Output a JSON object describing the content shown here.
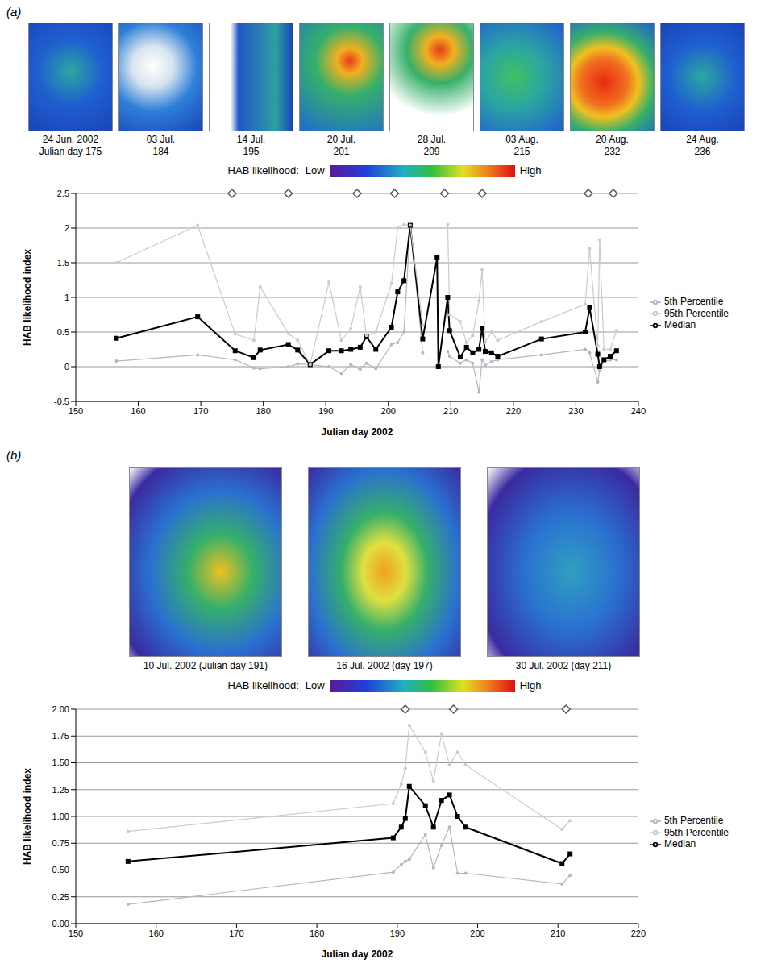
{
  "panels": [
    {
      "label": "(a)",
      "maps": [
        {
          "date": "24 Jun. 2002",
          "day": "Julian day 175"
        },
        {
          "date": "03 Jul.",
          "day": "184"
        },
        {
          "date": "14 Jul.",
          "day": "195"
        },
        {
          "date": "20 Jul.",
          "day": "201"
        },
        {
          "date": "28 Jul.",
          "day": "209"
        },
        {
          "date": "03 Aug.",
          "day": "215"
        },
        {
          "date": "20 Aug.",
          "day": "232"
        },
        {
          "date": "24 Aug.",
          "day": "236"
        }
      ],
      "colorbar": {
        "label": "HAB likelihood:",
        "low": "Low",
        "high": "High"
      }
    },
    {
      "label": "(b)",
      "maps": [
        {
          "date": "10 Jul. 2002 (Julian day 191)"
        },
        {
          "date": "16 Jul. 2002 (day 197)"
        },
        {
          "date": "30 Jul. 2002 (day 211)"
        }
      ],
      "colorbar": {
        "label": "HAB likelihood:",
        "low": "Low",
        "high": "High"
      }
    }
  ],
  "chart_data": [
    {
      "type": "line",
      "x_label": "Julian day 2002",
      "y_label": "HAB likelihood index",
      "xlim": [
        150,
        240
      ],
      "xticks": [
        150,
        160,
        170,
        180,
        190,
        200,
        210,
        220,
        230,
        240
      ],
      "ylim": [
        -0.5,
        2.5
      ],
      "yticks": [
        -0.5,
        0,
        0.5,
        1,
        1.5,
        2,
        2.5
      ],
      "grid": true,
      "legend": "right",
      "x": [
        156.5,
        169.5,
        175.5,
        178.5,
        179.5,
        184,
        185.5,
        187.5,
        190.5,
        192.5,
        194,
        195.5,
        196.5,
        198,
        200.5,
        201.5,
        202.5,
        203.5,
        205.5,
        207.8,
        208,
        209.5,
        209.8,
        211.5,
        212.5,
        213.5,
        214.5,
        215,
        215.5,
        216.5,
        217.5,
        224.5,
        231.5,
        232.2,
        233.5,
        233.8,
        234.5,
        235.5,
        236.5
      ],
      "series": [
        {
          "name": "5th Percentile",
          "color": "#b0b8c4",
          "marker": "circle",
          "values": [
            0.08,
            0.17,
            0.1,
            -0.02,
            -0.03,
            0.0,
            0.04,
            0.03,
            0.0,
            -0.1,
            0.03,
            -0.04,
            0.05,
            -0.03,
            0.32,
            0.35,
            0.5,
            2.04,
            0.2,
            null,
            null,
            0.22,
            0.15,
            0.05,
            0.1,
            0.05,
            -0.37,
            0.1,
            0.02,
            0.07,
            0.1,
            0.17,
            0.25,
            0.2,
            -0.22,
            -0.05,
            0.07,
            0.1,
            0.1
          ]
        },
        {
          "name": "Median",
          "color": "#000000",
          "marker": "square",
          "values": [
            0.41,
            0.72,
            0.23,
            0.13,
            0.24,
            0.32,
            0.24,
            0.03,
            0.23,
            0.23,
            0.25,
            0.28,
            0.43,
            0.25,
            0.57,
            1.08,
            1.24,
            2.04,
            0.4,
            1.57,
            0.0,
            1.0,
            0.52,
            0.14,
            0.28,
            0.2,
            0.25,
            0.55,
            0.22,
            0.2,
            0.15,
            0.4,
            0.5,
            0.85,
            0.18,
            0.0,
            0.1,
            0.15,
            0.23
          ]
        },
        {
          "name": "95th Percentile",
          "color": "#c4ccd6",
          "marker": "circle",
          "values": [
            1.5,
            2.04,
            0.47,
            0.38,
            1.15,
            0.48,
            0.38,
            0.03,
            1.22,
            0.38,
            0.55,
            1.15,
            0.45,
            0.5,
            1.2,
            2.0,
            2.05,
            2.04,
            0.6,
            null,
            null,
            2.05,
            0.75,
            0.65,
            0.35,
            0.45,
            0.95,
            1.4,
            0.35,
            0.5,
            0.38,
            0.65,
            0.9,
            1.7,
            0.3,
            1.83,
            0.25,
            0.25,
            0.52
          ]
        }
      ],
      "image_days": {
        "x": [
          175,
          184,
          195,
          201,
          209,
          215,
          232,
          236
        ],
        "y": 2.5
      }
    },
    {
      "type": "line",
      "x_label": "Julian day 2002",
      "y_label": "HAB likelihood index",
      "xlim": [
        150,
        220
      ],
      "xticks": [
        150,
        160,
        170,
        180,
        190,
        200,
        210,
        220
      ],
      "ylim": [
        0,
        2
      ],
      "yticks": [
        {
          "value": 0,
          "label": "0.00"
        },
        {
          "value": 0.25,
          "label": "0.25"
        },
        {
          "value": 0.5,
          "label": "0.50"
        },
        {
          "value": 0.75,
          "label": "0.75"
        },
        {
          "value": 1,
          "label": "1.00"
        },
        {
          "value": 1.25,
          "label": "1.25"
        },
        {
          "value": 1.5,
          "label": "1.50"
        },
        {
          "value": 1.75,
          "label": "1.75"
        },
        {
          "value": 2,
          "label": "2.00"
        }
      ],
      "grid": true,
      "legend": "right",
      "x": [
        156.5,
        189.5,
        190.5,
        191,
        191.5,
        193.5,
        194.5,
        195.5,
        196.5,
        197.5,
        198.5,
        210.5,
        211.5
      ],
      "series": [
        {
          "name": "5th Percentile",
          "color": "#b0b8c4",
          "marker": "circle",
          "values": [
            0.18,
            0.48,
            0.55,
            0.58,
            0.6,
            0.83,
            0.52,
            0.73,
            0.9,
            0.47,
            0.47,
            0.37,
            0.45
          ]
        },
        {
          "name": "Median",
          "color": "#000000",
          "marker": "square",
          "values": [
            0.58,
            0.8,
            0.9,
            0.98,
            1.28,
            1.1,
            0.9,
            1.15,
            1.2,
            1.0,
            0.9,
            0.56,
            0.65
          ]
        },
        {
          "name": "95th Percentile",
          "color": "#c4ccd6",
          "marker": "circle",
          "values": [
            0.86,
            1.12,
            1.3,
            1.45,
            1.85,
            1.6,
            1.33,
            1.77,
            1.48,
            1.6,
            1.48,
            0.88,
            0.96
          ]
        }
      ],
      "image_days": {
        "x": [
          191,
          197,
          211
        ],
        "y": 2
      }
    }
  ]
}
